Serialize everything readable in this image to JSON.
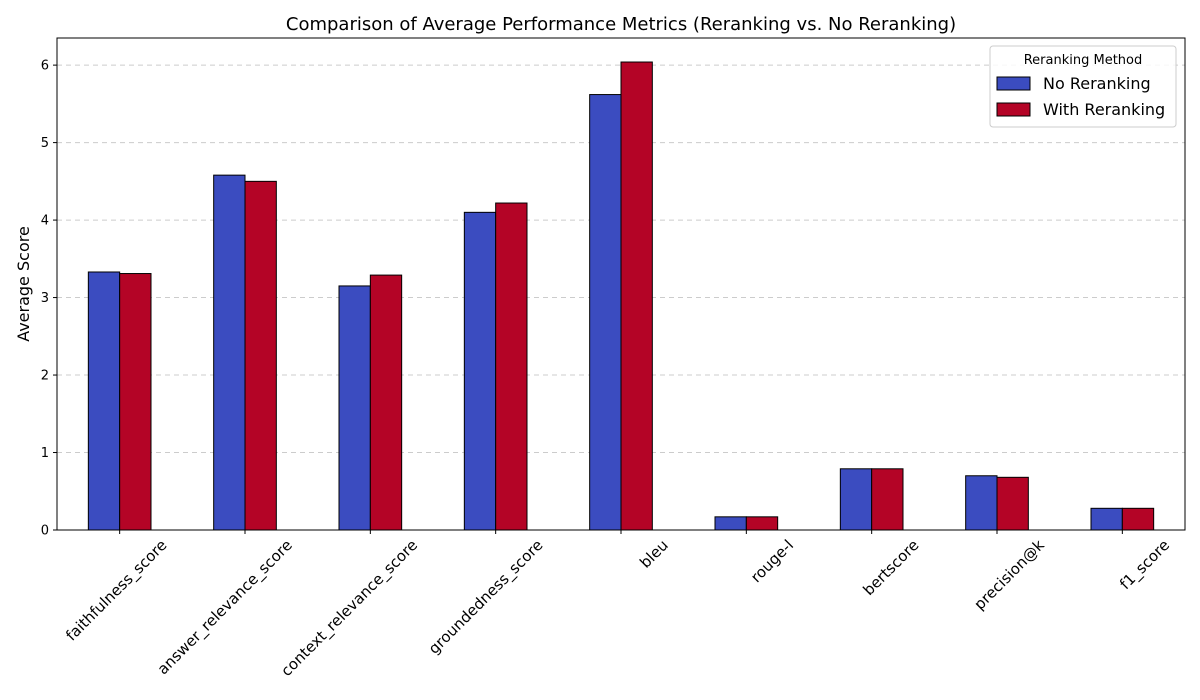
{
  "chart_data": {
    "type": "bar",
    "title": "Comparison of Average Performance Metrics (Reranking vs. No Reranking)",
    "xlabel": "",
    "ylabel": "Average Score",
    "ylim": [
      0,
      6.35
    ],
    "yticks": [
      0,
      1,
      2,
      3,
      4,
      5,
      6
    ],
    "grid": true,
    "legend": {
      "title": "Reranking Method",
      "position": "top-right"
    },
    "categories": [
      "faithfulness_score",
      "answer_relevance_score",
      "context_relevance_score",
      "groundedness_score",
      "bleu",
      "rouge-l",
      "bertscore",
      "precision@k",
      "f1_score"
    ],
    "series": [
      {
        "name": "No Reranking",
        "color": "#3b4cc0",
        "values": [
          3.33,
          4.58,
          3.15,
          4.1,
          5.62,
          0.17,
          0.79,
          0.7,
          0.28
        ]
      },
      {
        "name": "With Reranking",
        "color": "#b40426",
        "values": [
          3.31,
          4.5,
          3.29,
          4.22,
          6.04,
          0.17,
          0.79,
          0.68,
          0.28
        ]
      }
    ]
  }
}
